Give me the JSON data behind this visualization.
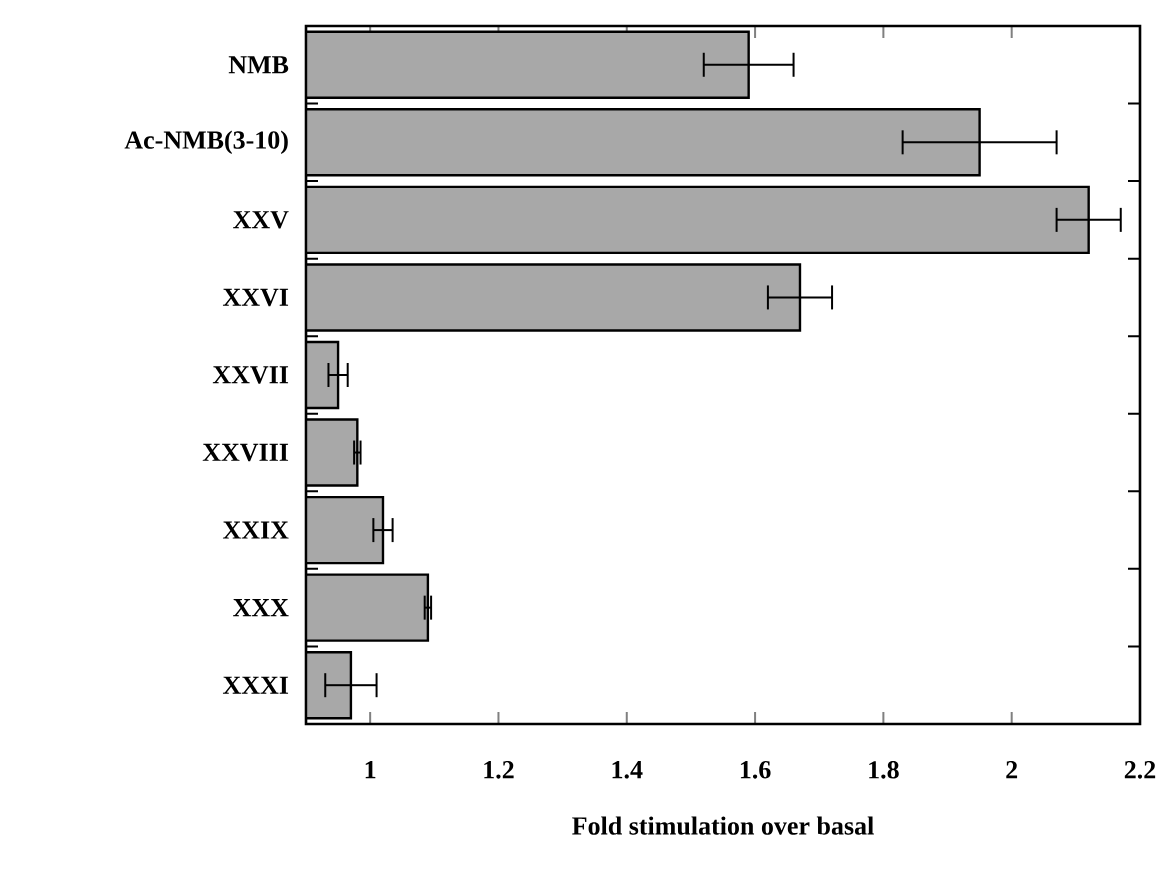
{
  "chart_data": {
    "type": "bar",
    "orientation": "horizontal",
    "xlabel": "Fold stimulation over basal",
    "categories": [
      "NMB",
      "Ac-NMB(3-10)",
      "XXV",
      "XXVI",
      "XXVII",
      "XXVIII",
      "XXIX",
      "XXX",
      "XXXI"
    ],
    "values": [
      1.59,
      1.95,
      2.12,
      1.67,
      0.95,
      0.98,
      1.02,
      1.09,
      0.97
    ],
    "errors": [
      0.07,
      0.12,
      0.05,
      0.05,
      0.015,
      0.005,
      0.015,
      0.005,
      0.04
    ],
    "color": "#a8a8a8",
    "xlim": [
      0.9,
      2.2
    ],
    "xticks": [
      1,
      1.2,
      1.4,
      1.6,
      1.8,
      2,
      2.2
    ]
  }
}
